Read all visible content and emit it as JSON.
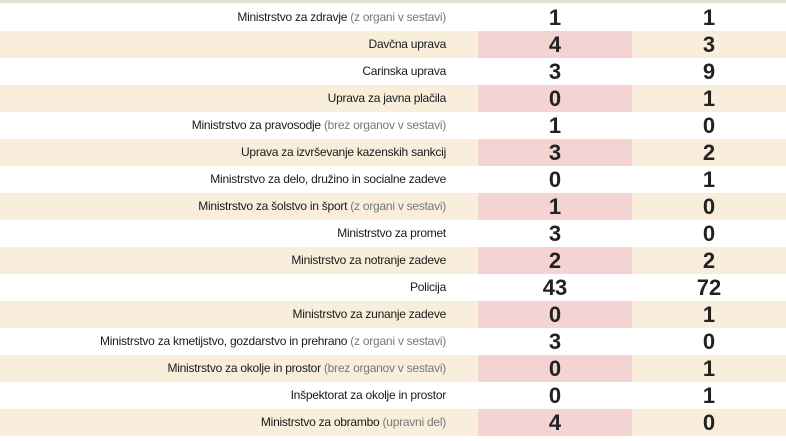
{
  "table": {
    "rows": [
      {
        "name": "Ministrstvo za zdravje",
        "note": "(z organi v sestavi)",
        "a": 1,
        "b": 1
      },
      {
        "name": "Davčna uprava",
        "note": null,
        "a": 4,
        "b": 3
      },
      {
        "name": "Carinska uprava",
        "note": null,
        "a": 3,
        "b": 9
      },
      {
        "name": "Uprava za javna plačila",
        "note": null,
        "a": 0,
        "b": 1
      },
      {
        "name": "Ministrstvo za pravosodje",
        "note": "(brez organov v sestavi)",
        "a": 1,
        "b": 0
      },
      {
        "name": "Uprava za izvrševanje kazenskih sankcij",
        "note": null,
        "a": 3,
        "b": 2
      },
      {
        "name": "Ministrstvo za delo, družino in socialne zadeve",
        "note": null,
        "a": 0,
        "b": 1
      },
      {
        "name": "Ministrstvo za šolstvo in šport",
        "note": "(z organi v sestavi)",
        "a": 1,
        "b": 0
      },
      {
        "name": "Ministrstvo za promet",
        "note": null,
        "a": 3,
        "b": 0
      },
      {
        "name": "Ministrstvo za notranje zadeve",
        "note": null,
        "a": 2,
        "b": 2
      },
      {
        "name": "Policija",
        "note": null,
        "a": 43,
        "b": 72
      },
      {
        "name": "Ministrstvo za zunanje zadeve",
        "note": null,
        "a": 0,
        "b": 1
      },
      {
        "name": "Ministrstvo za kmetijstvo, gozdarstvo in prehrano",
        "note": "(z organi v sestavi)",
        "a": 3,
        "b": 0
      },
      {
        "name": "Ministrstvo za okolje in prostor",
        "note": "(brez organov v sestavi)",
        "a": 0,
        "b": 1
      },
      {
        "name": "Inšpektorat za okolje in prostor",
        "note": null,
        "a": 0,
        "b": 1
      },
      {
        "name": "Ministrstvo za obrambo",
        "note": "(upravni del)",
        "a": 4,
        "b": 0
      }
    ]
  }
}
